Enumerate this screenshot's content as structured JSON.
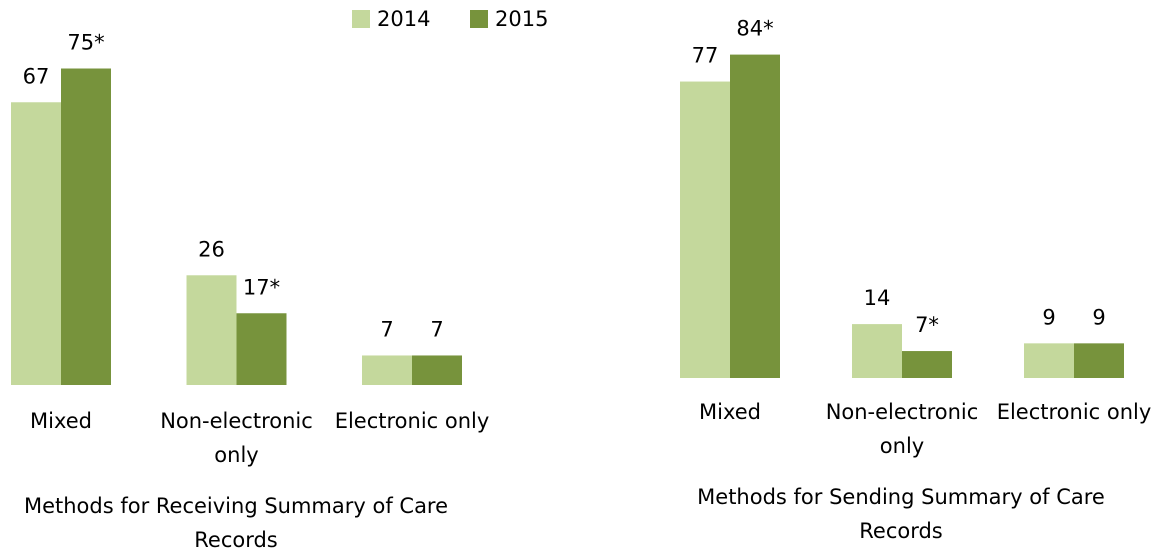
{
  "chart_data": [
    {
      "type": "bar",
      "xlabel": "Methods for Receiving Summary of Care Records",
      "categories": [
        "Mixed",
        "Non-electronic only",
        "Electronic only"
      ],
      "series": [
        {
          "name": "2014",
          "color": "#c4d89c",
          "values": [
            67,
            26,
            7
          ]
        },
        {
          "name": "2015",
          "color": "#77933c",
          "values": [
            75,
            17,
            7
          ],
          "value_labels": [
            "75*",
            "17*",
            "7"
          ]
        }
      ]
    },
    {
      "type": "bar",
      "xlabel": "Methods for Sending Summary of Care Records",
      "categories": [
        "Mixed",
        "Non-electronic only",
        "Electronic only"
      ],
      "series": [
        {
          "color": "#c4d89c",
          "values": [
            77,
            14,
            9
          ]
        },
        {
          "color": "#77933c",
          "values": [
            84,
            7,
            9
          ],
          "value_labels": [
            "84*",
            "7*",
            "9"
          ]
        }
      ]
    }
  ]
}
